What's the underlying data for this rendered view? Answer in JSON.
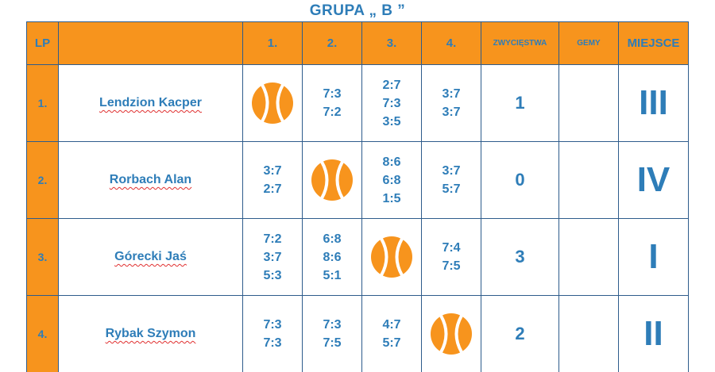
{
  "title": "GRUPA „ B ”",
  "headers": {
    "lp": "LP",
    "name": "",
    "c1": "1.",
    "c2": "2.",
    "c3": "3.",
    "c4": "4.",
    "wins": "ZWYCIĘSTWA",
    "games": "GEMY",
    "place": "MIEJSCE"
  },
  "colors": {
    "orange": "#F7941D",
    "text": "#2E7DB8",
    "border": "#2E5C8C"
  },
  "rows": [
    {
      "lp": "1.",
      "name": "Lendzion Kacper",
      "c1": [],
      "c2": [
        "7:3",
        "7:2"
      ],
      "c3": [
        "2:7",
        "7:3",
        "3:5"
      ],
      "c4": [
        "3:7",
        "3:7"
      ],
      "wins": "1",
      "games": "",
      "place": "III"
    },
    {
      "lp": "2.",
      "name": "Rorbach Alan",
      "c1": [
        "3:7",
        "2:7"
      ],
      "c2": [],
      "c3": [
        "8:6",
        "6:8",
        "1:5"
      ],
      "c4": [
        "3:7",
        "5:7"
      ],
      "wins": "0",
      "games": "",
      "place": "IV"
    },
    {
      "lp": "3.",
      "name": "Górecki Jaś",
      "c1": [
        "7:2",
        "3:7",
        "5:3"
      ],
      "c2": [
        "6:8",
        "8:6",
        "5:1"
      ],
      "c3": [],
      "c4": [
        "7:4",
        "7:5"
      ],
      "wins": "3",
      "games": "",
      "place": "I"
    },
    {
      "lp": "4.",
      "name": "Rybak Szymon",
      "c1": [
        "7:3",
        "7:3"
      ],
      "c2": [
        "7:3",
        "7:5"
      ],
      "c3": [
        "4:7",
        "5:7"
      ],
      "c4": [],
      "wins": "2",
      "games": "",
      "place": "II"
    }
  ]
}
